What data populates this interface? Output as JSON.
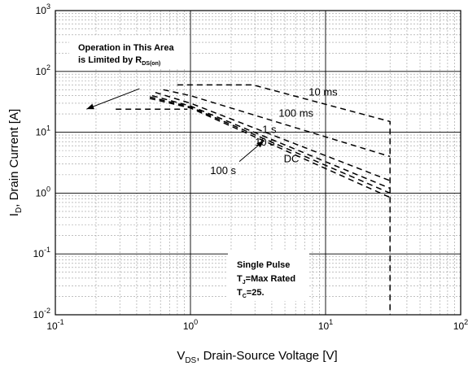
{
  "chart_data": {
    "type": "line",
    "title": "",
    "x_scale": "log",
    "y_scale": "log",
    "xlim": [
      0.1,
      100
    ],
    "ylim": [
      0.01,
      1000
    ],
    "grid": true,
    "xlabel": {
      "main": "V",
      "sub": "DS",
      "rest": ", Drain-Source Voltage [V]"
    },
    "ylabel": {
      "main": "I",
      "sub": "D",
      "rest": ", Drain Current [A]"
    },
    "x_ticks": [
      {
        "value": 0.1,
        "base": "10",
        "exp": "-1"
      },
      {
        "value": 1,
        "base": "10",
        "exp": "0"
      },
      {
        "value": 10,
        "base": "10",
        "exp": "1"
      },
      {
        "value": 100,
        "base": "10",
        "exp": "2"
      }
    ],
    "y_ticks": [
      {
        "value": 0.01,
        "base": "10",
        "exp": "-2"
      },
      {
        "value": 0.1,
        "base": "10",
        "exp": "-1"
      },
      {
        "value": 1,
        "base": "10",
        "exp": "0"
      },
      {
        "value": 10,
        "base": "10",
        "exp": "1"
      },
      {
        "value": 100,
        "base": "10",
        "exp": "2"
      },
      {
        "value": 1000,
        "base": "10",
        "exp": "3"
      }
    ],
    "series": [
      {
        "name": "10 ms",
        "points": [
          [
            0.8,
            60
          ],
          [
            2.9,
            60
          ],
          [
            30,
            15
          ],
          [
            30,
            0.01
          ]
        ]
      },
      {
        "name": "100 ms",
        "points": [
          [
            0.63,
            50
          ],
          [
            1.0,
            40
          ],
          [
            30,
            4.0
          ]
        ]
      },
      {
        "name": "1 s",
        "points": [
          [
            0.55,
            45
          ],
          [
            1.0,
            30
          ],
          [
            30,
            1.6
          ]
        ]
      },
      {
        "name": "10 s",
        "points": [
          [
            0.52,
            40
          ],
          [
            1.0,
            27
          ],
          [
            30,
            1.2
          ]
        ]
      },
      {
        "name": "100 s",
        "points": [
          [
            0.5,
            38
          ],
          [
            1.0,
            26
          ],
          [
            30,
            1.0
          ]
        ]
      },
      {
        "name": "DC",
        "points": [
          [
            0.5,
            36
          ],
          [
            1.0,
            25
          ],
          [
            30,
            0.85
          ]
        ]
      },
      {
        "name": "",
        "points": [
          [
            0.28,
            24
          ],
          [
            0.95,
            24
          ]
        ]
      }
    ],
    "annotations": [
      {
        "id": "10ms",
        "text": "10 ms",
        "at": [
          7.5,
          40
        ]
      },
      {
        "id": "100ms",
        "text": "100 ms",
        "at": [
          4.5,
          18
        ]
      },
      {
        "id": "1s",
        "text": "1 s",
        "at": [
          3.4,
          9.8
        ]
      },
      {
        "id": "10s",
        "text": "10 s",
        "at": [
          3.0,
          6.0
        ]
      },
      {
        "id": "100s",
        "text": "100 s",
        "at": [
          1.4,
          2.05
        ]
      },
      {
        "id": "dc",
        "text": "DC",
        "at": [
          4.9,
          3.2
        ]
      }
    ],
    "arrows": [
      {
        "id": "rds-arrow",
        "from": [
          0.42,
          52
        ],
        "to": [
          0.17,
          24
        ]
      },
      {
        "id": "100s-arrow",
        "from": [
          2.3,
          3.3
        ],
        "to": [
          3.5,
          7.3
        ]
      }
    ],
    "rds_box": {
      "line1": "Operation in This Area",
      "line2": "is Limited by R",
      "line2_sub": "DS(on)"
    },
    "pulse_box": {
      "line1": "Single Pulse",
      "line2_main": "T",
      "line2_sub": "J",
      "line2_rest": "=Max Rated",
      "line3_main": "T",
      "line3_sub": "C",
      "line3_rest": "=25."
    }
  }
}
